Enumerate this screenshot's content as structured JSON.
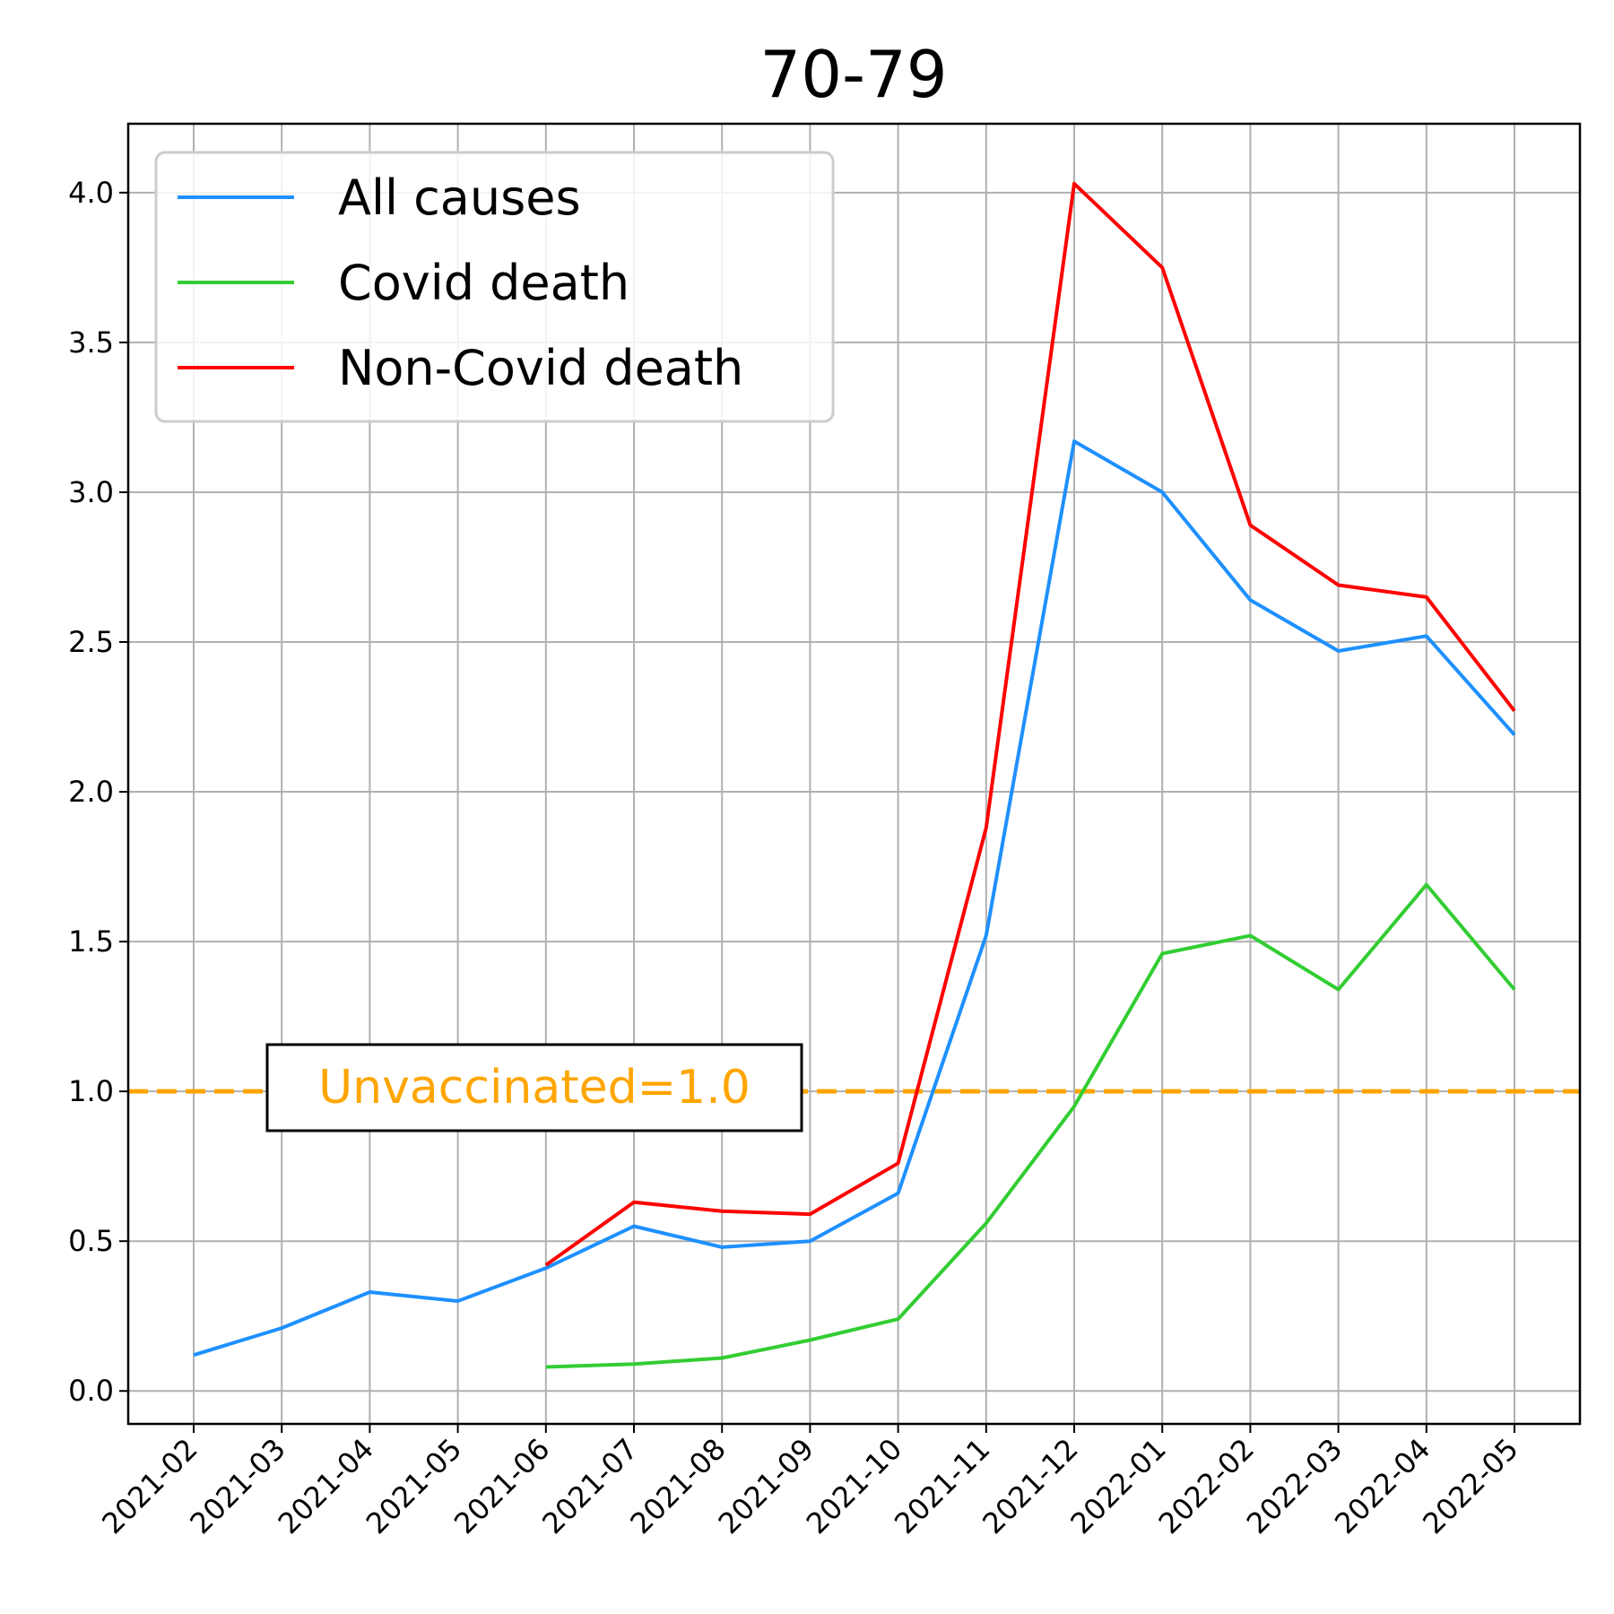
{
  "chart_data": {
    "type": "line",
    "title": "70-79",
    "xlabel": "",
    "ylabel": "",
    "categories": [
      "2021-02",
      "2021-03",
      "2021-04",
      "2021-05",
      "2021-06",
      "2021-07",
      "2021-08",
      "2021-09",
      "2021-10",
      "2021-11",
      "2021-12",
      "2022-01",
      "2022-02",
      "2022-03",
      "2022-04",
      "2022-05"
    ],
    "yticks": [
      "0.0",
      "0.5",
      "1.0",
      "1.5",
      "2.0",
      "2.5",
      "3.0",
      "3.5",
      "4.0"
    ],
    "ylim": [
      -0.11,
      4.23
    ],
    "grid": true,
    "legend_position": "upper-left",
    "series": [
      {
        "name": "All causes",
        "color": "#1e90ff",
        "values": [
          0.12,
          0.21,
          0.33,
          0.3,
          0.41,
          0.55,
          0.48,
          0.5,
          0.66,
          1.52,
          3.17,
          3.0,
          2.64,
          2.47,
          2.52,
          2.19
        ]
      },
      {
        "name": "Covid death",
        "color": "#32cd32",
        "values": [
          null,
          null,
          null,
          null,
          0.08,
          0.09,
          0.11,
          0.17,
          0.24,
          0.56,
          0.95,
          1.46,
          1.52,
          1.34,
          1.69,
          1.34
        ]
      },
      {
        "name": "Non-Covid death",
        "color": "#ff0000",
        "values": [
          null,
          null,
          null,
          null,
          0.42,
          0.63,
          0.6,
          0.59,
          0.76,
          1.88,
          4.03,
          3.75,
          2.89,
          2.69,
          2.65,
          2.27
        ]
      }
    ],
    "reference_line": {
      "value": 1.0,
      "color": "#ffa500",
      "style": "dashed"
    },
    "annotation": {
      "text": "Unvaccinated=1.0",
      "color": "#ffa500"
    }
  }
}
